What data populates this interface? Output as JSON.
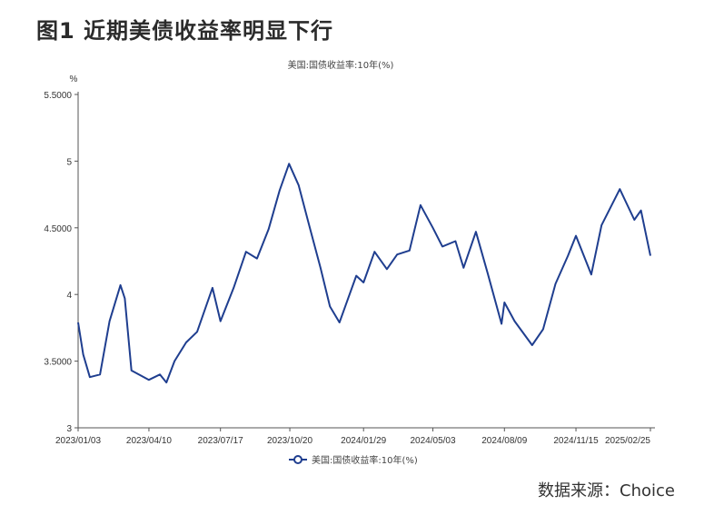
{
  "header": {
    "figure_title": "图1  近期美债收益率明显下行",
    "source": "数据来源：Choice"
  },
  "chart_data": {
    "type": "line",
    "title": "美国:国债收益率:10年(%)",
    "ylabel": "%",
    "ylim": [
      3,
      5.5
    ],
    "y_ticks": [
      "3",
      "3.5000",
      "4",
      "4.5000",
      "5",
      "5.5000"
    ],
    "y_tick_values": [
      3,
      3.5,
      4,
      4.5,
      5,
      5.5
    ],
    "x_ticks": [
      "2023/01/03",
      "2023/04/10",
      "2023/07/17",
      "2023/10/20",
      "2024/01/29",
      "2024/05/03",
      "2024/08/09",
      "2024/11/15",
      "2025/02/25"
    ],
    "legend": {
      "position": "bottom-center",
      "label": "美国:国债收益率:10年(%)"
    },
    "color": "#1f3e8f",
    "series": [
      {
        "name": "美国:国债收益率:10年(%)",
        "x": [
          "2023/01/03",
          "2023/01/10",
          "2023/01/19",
          "2023/02/02",
          "2023/02/15",
          "2023/03/02",
          "2023/03/08",
          "2023/03/17",
          "2023/04/10",
          "2023/04/25",
          "2023/05/04",
          "2023/05/15",
          "2023/05/31",
          "2023/06/15",
          "2023/07/06",
          "2023/07/17",
          "2023/08/04",
          "2023/08/21",
          "2023/09/05",
          "2023/09/21",
          "2023/10/06",
          "2023/10/19",
          "2023/11/01",
          "2023/11/15",
          "2023/12/01",
          "2023/12/14",
          "2023/12/27",
          "2024/01/19",
          "2024/01/29",
          "2024/02/13",
          "2024/03/01",
          "2024/03/15",
          "2024/04/01",
          "2024/04/16",
          "2024/05/03",
          "2024/05/16",
          "2024/06/03",
          "2024/06/14",
          "2024/07/01",
          "2024/07/17",
          "2024/08/05",
          "2024/08/09",
          "2024/08/23",
          "2024/09/16",
          "2024/10/01",
          "2024/10/18",
          "2024/11/04",
          "2024/11/15",
          "2024/12/06",
          "2024/12/20",
          "2025/01/14",
          "2025/02/03",
          "2025/02/12",
          "2025/02/25"
        ],
        "values": [
          3.79,
          3.55,
          3.38,
          3.4,
          3.8,
          4.07,
          3.97,
          3.43,
          3.36,
          3.4,
          3.34,
          3.5,
          3.64,
          3.72,
          4.05,
          3.8,
          4.05,
          4.32,
          4.27,
          4.49,
          4.78,
          4.98,
          4.82,
          4.53,
          4.2,
          3.91,
          3.79,
          4.14,
          4.09,
          4.32,
          4.19,
          4.3,
          4.33,
          4.67,
          4.5,
          4.36,
          4.4,
          4.2,
          4.47,
          4.16,
          3.78,
          3.94,
          3.8,
          3.62,
          3.74,
          4.08,
          4.29,
          4.44,
          4.15,
          4.52,
          4.79,
          4.56,
          4.63,
          4.29
        ]
      }
    ]
  }
}
